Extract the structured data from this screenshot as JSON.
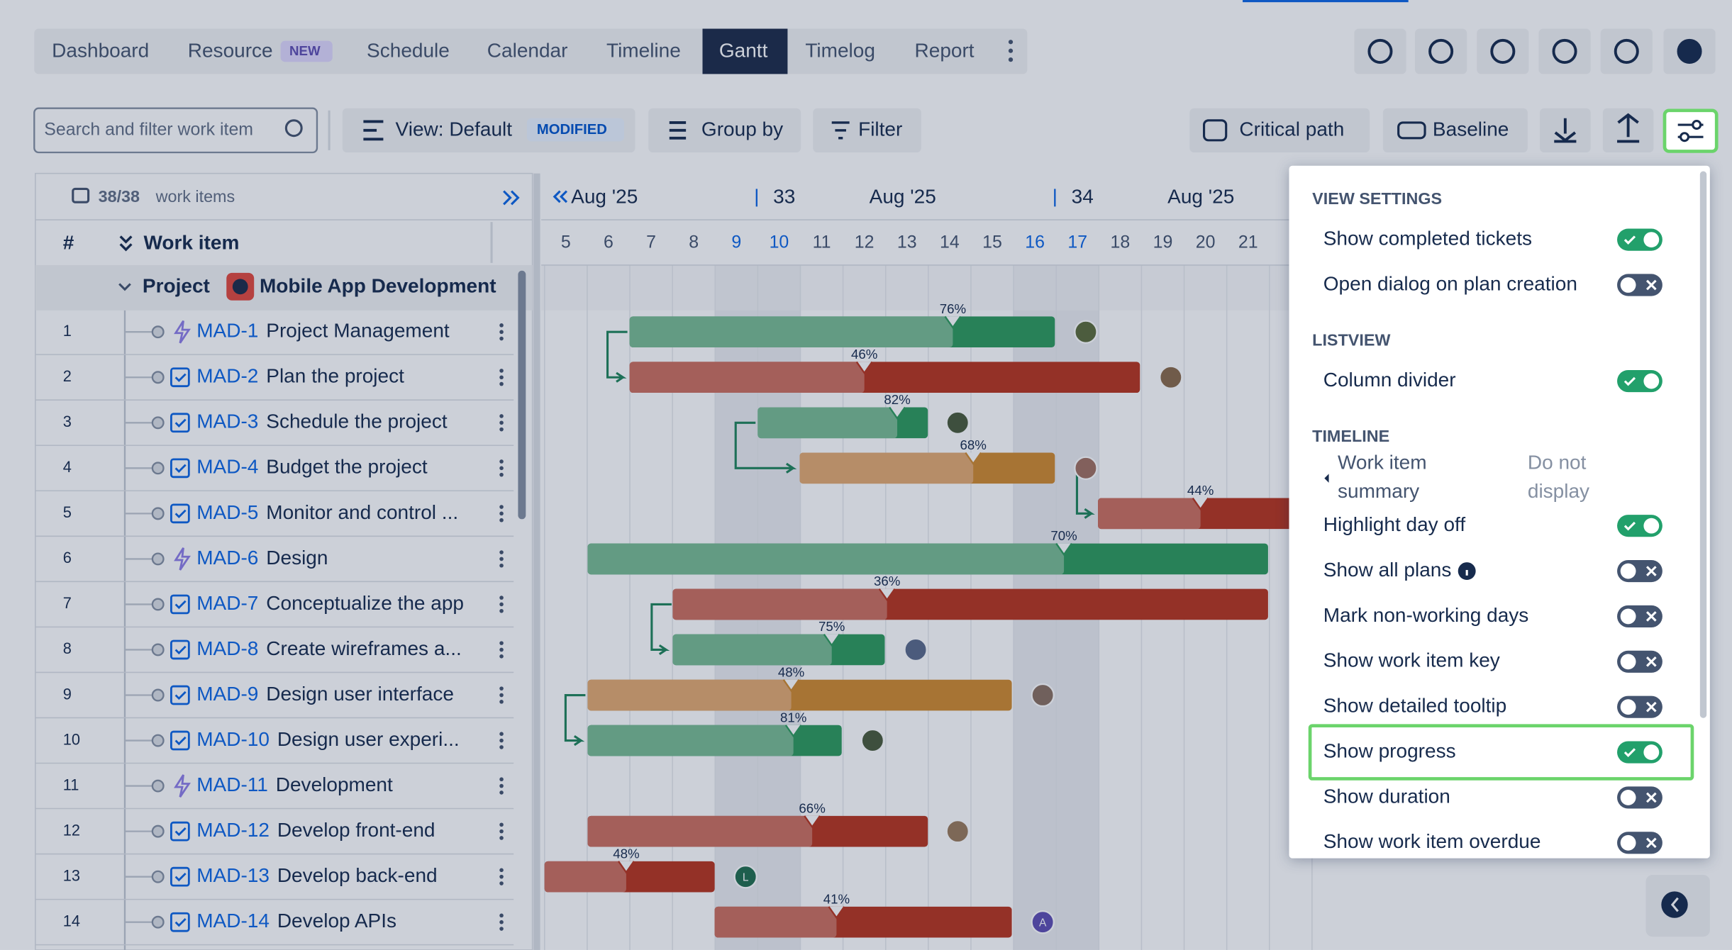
{
  "tabs": [
    "Dashboard",
    "Resource",
    "Schedule",
    "Calendar",
    "Timeline",
    "Gantt",
    "Timelog",
    "Report"
  ],
  "active_tab_index": 5,
  "new_badge": "NEW",
  "search_placeholder": "Search and filter work item",
  "toolbar": {
    "view": "View: Default",
    "modified": "MODIFIED",
    "group_by": "Group by",
    "filter": "Filter",
    "critical_path": "Critical path",
    "baseline": "Baseline"
  },
  "list": {
    "count": "38/38",
    "count_label": "work items",
    "col_num": "#",
    "col_item": "Work item",
    "project_type": "Project",
    "project_name": "Mobile App Development",
    "rows": [
      {
        "num": "1",
        "type": "epic",
        "key": "MAD-1",
        "title": "Project Management",
        "progress": "76%"
      },
      {
        "num": "2",
        "type": "task",
        "key": "MAD-2",
        "title": "Plan the project",
        "progress": "46%"
      },
      {
        "num": "3",
        "type": "task",
        "key": "MAD-3",
        "title": "Schedule the project",
        "progress": "82%"
      },
      {
        "num": "4",
        "type": "task",
        "key": "MAD-4",
        "title": "Budget the project",
        "progress": "68%"
      },
      {
        "num": "5",
        "type": "task",
        "key": "MAD-5",
        "title": "Monitor and control ...",
        "progress": "44%"
      },
      {
        "num": "6",
        "type": "epic",
        "key": "MAD-6",
        "title": "Design",
        "progress": "70%"
      },
      {
        "num": "7",
        "type": "task",
        "key": "MAD-7",
        "title": "Conceptualize the app",
        "progress": "36%"
      },
      {
        "num": "8",
        "type": "task",
        "key": "MAD-8",
        "title": "Create wireframes a...",
        "progress": "75%"
      },
      {
        "num": "9",
        "type": "task",
        "key": "MAD-9",
        "title": "Design user interface",
        "progress": "48%"
      },
      {
        "num": "10",
        "type": "task",
        "key": "MAD-10",
        "title": "Design user experi...",
        "progress": "81%"
      },
      {
        "num": "11",
        "type": "epic",
        "key": "MAD-11",
        "title": "Development"
      },
      {
        "num": "12",
        "type": "task",
        "key": "MAD-12",
        "title": "Develop front-end",
        "progress": "66%"
      },
      {
        "num": "13",
        "type": "task",
        "key": "MAD-13",
        "title": "Develop back-end",
        "progress": "48%",
        "avatar": "L"
      },
      {
        "num": "14",
        "type": "task",
        "key": "MAD-14",
        "title": "Develop APIs",
        "progress": "41%",
        "avatar": "A"
      }
    ]
  },
  "timeline": {
    "months": [
      "Aug '25",
      "Aug '25",
      "Aug '25"
    ],
    "weeks": [
      "33",
      "34"
    ],
    "days": [
      "5",
      "6",
      "7",
      "8",
      "9",
      "10",
      "11",
      "12",
      "13",
      "14",
      "15",
      "16",
      "17",
      "18",
      "19",
      "20",
      "21"
    ]
  },
  "settings": {
    "sections": [
      {
        "title": "VIEW SETTINGS",
        "items": [
          {
            "label": "Show completed tickets",
            "on": true
          },
          {
            "label": "Open dialog on plan creation",
            "on": false
          }
        ]
      },
      {
        "title": "LISTVIEW",
        "items": [
          {
            "label": "Column divider",
            "on": true
          }
        ]
      },
      {
        "title": "TIMELINE",
        "items": [
          {
            "label": "Work item summary",
            "value": "Do not display"
          },
          {
            "label": "Highlight day off",
            "on": true
          },
          {
            "label": "Show all plans",
            "on": false,
            "info_icon": true
          },
          {
            "label": "Mark non-working days",
            "on": false
          },
          {
            "label": "Show work item key",
            "on": false
          },
          {
            "label": "Show detailed tooltip",
            "on": false
          },
          {
            "label": "Show progress",
            "on": true
          },
          {
            "label": "Show duration",
            "on": false
          },
          {
            "label": "Show work item overdue",
            "on": false
          }
        ]
      }
    ]
  }
}
